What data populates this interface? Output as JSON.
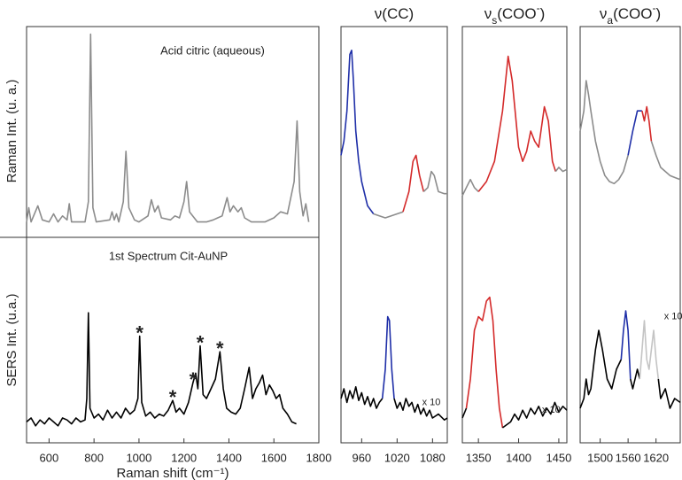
{
  "chart_data": [
    {
      "type": "line",
      "xlim": [
        500,
        1800
      ],
      "xticks": [
        600,
        800,
        1000,
        1200,
        1400,
        1600,
        1800
      ],
      "xlabel": "Raman shift (cm⁻¹)",
      "panels": [
        {
          "title": "Acid citric (aqueous)",
          "ylabel": "Raman Int. (u. a.)",
          "ylim": [
            0,
            1
          ],
          "series": [
            {
              "color": "#8c8c8c",
              "x": [
                500,
                510,
                520,
                550,
                570,
                600,
                620,
                640,
                660,
                680,
                690,
                700,
                760,
                775,
                785,
                795,
                810,
                870,
                880,
                890,
                900,
                910,
                930,
                942,
                955,
                980,
                1000,
                1040,
                1055,
                1070,
                1085,
                1100,
                1140,
                1160,
                1180,
                1200,
                1212,
                1225,
                1260,
                1300,
                1330,
                1350,
                1370,
                1392,
                1405,
                1420,
                1440,
                1455,
                1470,
                1500,
                1560,
                1600,
                1630,
                1660,
                1690,
                1703,
                1715,
                1730,
                1742,
                1755
              ],
              "values": [
                0.05,
                0.12,
                0.05,
                0.13,
                0.06,
                0.05,
                0.09,
                0.05,
                0.08,
                0.06,
                0.14,
                0.05,
                0.05,
                0.15,
                0.98,
                0.12,
                0.05,
                0.06,
                0.1,
                0.06,
                0.09,
                0.05,
                0.15,
                0.4,
                0.12,
                0.06,
                0.05,
                0.08,
                0.16,
                0.1,
                0.13,
                0.07,
                0.06,
                0.08,
                0.07,
                0.15,
                0.25,
                0.1,
                0.05,
                0.05,
                0.06,
                0.07,
                0.08,
                0.17,
                0.1,
                0.13,
                0.1,
                0.12,
                0.07,
                0.05,
                0.05,
                0.07,
                0.1,
                0.09,
                0.25,
                0.55,
                0.2,
                0.08,
                0.14,
                0.05
              ]
            }
          ]
        },
        {
          "title": "1st Spectrum Cit-AuNP",
          "ylabel": "SERS Int. (u.a.)",
          "ylim": [
            0,
            1
          ],
          "annotations": [
            {
              "text": "*",
              "x": 1003
            },
            {
              "text": "*",
              "x": 1150
            },
            {
              "text": "*",
              "x": 1240
            },
            {
              "text": "*",
              "x": 1272
            },
            {
              "text": "*",
              "x": 1360
            }
          ],
          "series": [
            {
              "color": "#000000",
              "x": [
                500,
                520,
                540,
                560,
                580,
                600,
                620,
                640,
                660,
                680,
                700,
                720,
                740,
                760,
                768,
                775,
                782,
                800,
                820,
                840,
                860,
                880,
                900,
                920,
                940,
                960,
                980,
                995,
                1003,
                1012,
                1030,
                1050,
                1070,
                1090,
                1110,
                1130,
                1150,
                1165,
                1180,
                1200,
                1220,
                1240,
                1252,
                1262,
                1272,
                1285,
                1300,
                1320,
                1340,
                1360,
                1375,
                1390,
                1410,
                1430,
                1450,
                1470,
                1490,
                1505,
                1520,
                1535,
                1550,
                1565,
                1580,
                1595,
                1610,
                1625,
                1640,
                1660,
                1680,
                1700
              ],
              "values": [
                0.08,
                0.1,
                0.06,
                0.09,
                0.07,
                0.1,
                0.08,
                0.06,
                0.1,
                0.09,
                0.07,
                0.1,
                0.08,
                0.09,
                0.2,
                0.64,
                0.15,
                0.1,
                0.12,
                0.09,
                0.14,
                0.1,
                0.13,
                0.1,
                0.15,
                0.12,
                0.14,
                0.2,
                0.52,
                0.18,
                0.11,
                0.13,
                0.1,
                0.12,
                0.11,
                0.14,
                0.19,
                0.13,
                0.15,
                0.12,
                0.18,
                0.28,
                0.33,
                0.25,
                0.47,
                0.22,
                0.2,
                0.25,
                0.3,
                0.44,
                0.25,
                0.15,
                0.13,
                0.12,
                0.15,
                0.25,
                0.36,
                0.2,
                0.25,
                0.28,
                0.32,
                0.22,
                0.27,
                0.24,
                0.2,
                0.22,
                0.15,
                0.12,
                0.08,
                0.07
              ]
            }
          ]
        }
      ]
    },
    {
      "type": "line",
      "title": {
        "symbol": "ν",
        "rest": "(CC)"
      },
      "xlim": [
        925,
        1105
      ],
      "xticks": [
        960,
        1020,
        1080
      ],
      "panels": [
        {
          "ylim": [
            0,
            1
          ],
          "series": [
            {
              "color": "#1f2fa8",
              "x": [
                925,
                930,
                935,
                940,
                943,
                946,
                950,
                955,
                960,
                970,
                980
              ],
              "values": [
                0.38,
                0.45,
                0.6,
                0.88,
                0.9,
                0.75,
                0.5,
                0.35,
                0.25,
                0.13,
                0.09
              ]
            },
            {
              "color": "#8c8c8c",
              "x": [
                980,
                990,
                1000,
                1010,
                1020,
                1030
              ],
              "values": [
                0.09,
                0.08,
                0.07,
                0.08,
                0.09,
                0.1
              ]
            },
            {
              "color": "#d42a2a",
              "x": [
                1030,
                1040,
                1047,
                1052,
                1058,
                1065
              ],
              "values": [
                0.1,
                0.2,
                0.35,
                0.38,
                0.28,
                0.2
              ]
            },
            {
              "color": "#8c8c8c",
              "x": [
                1065,
                1072,
                1078,
                1083,
                1090,
                1100,
                1105
              ],
              "values": [
                0.2,
                0.22,
                0.3,
                0.28,
                0.2,
                0.19,
                0.19
              ]
            }
          ]
        },
        {
          "ylim": [
            0,
            1
          ],
          "note": "x 10",
          "series": [
            {
              "color": "#000000",
              "x": [
                925,
                930,
                935,
                940,
                945,
                950,
                955,
                960,
                965,
                970,
                975,
                980,
                985,
                990,
                995
              ],
              "values": [
                0.2,
                0.25,
                0.18,
                0.24,
                0.2,
                0.26,
                0.19,
                0.23,
                0.17,
                0.21,
                0.16,
                0.2,
                0.15,
                0.18,
                0.2
              ]
            },
            {
              "color": "#1f2fa8",
              "x": [
                995,
                1000,
                1004,
                1007,
                1011,
                1015
              ],
              "values": [
                0.2,
                0.35,
                0.62,
                0.6,
                0.35,
                0.2
              ]
            },
            {
              "color": "#000000",
              "x": [
                1015,
                1020,
                1025,
                1030,
                1035,
                1040,
                1045,
                1050,
                1055,
                1060,
                1065,
                1070,
                1075,
                1080,
                1090,
                1100,
                1105
              ],
              "values": [
                0.2,
                0.15,
                0.18,
                0.14,
                0.2,
                0.16,
                0.18,
                0.13,
                0.17,
                0.12,
                0.15,
                0.11,
                0.14,
                0.1,
                0.12,
                0.09,
                0.1
              ]
            }
          ]
        }
      ]
    },
    {
      "type": "line",
      "title": {
        "symbol": "ν",
        "sub": "s",
        "rest": "(COO",
        "sup": "-",
        "close": ")"
      },
      "xlim": [
        1330,
        1460
      ],
      "xticks": [
        1350,
        1400,
        1450
      ],
      "panels": [
        {
          "ylim": [
            0,
            1
          ],
          "series": [
            {
              "color": "#8c8c8c",
              "x": [
                1330,
                1335,
                1340,
                1345,
                1350
              ],
              "values": [
                0.18,
                0.22,
                0.26,
                0.22,
                0.2
              ]
            },
            {
              "color": "#d42a2a",
              "x": [
                1350,
                1360,
                1370,
                1380,
                1387,
                1392,
                1400,
                1405,
                1410,
                1415,
                1420,
                1425,
                1432,
                1437,
                1442,
                1446
              ],
              "values": [
                0.2,
                0.25,
                0.35,
                0.6,
                0.87,
                0.75,
                0.42,
                0.35,
                0.4,
                0.5,
                0.45,
                0.42,
                0.62,
                0.55,
                0.35,
                0.3
              ]
            },
            {
              "color": "#8c8c8c",
              "x": [
                1446,
                1450,
                1455,
                1460
              ],
              "values": [
                0.3,
                0.32,
                0.3,
                0.31
              ]
            }
          ]
        },
        {
          "ylim": [
            0,
            1
          ],
          "note": "x 10",
          "series": [
            {
              "color": "#000000",
              "x": [
                1330,
                1335
              ],
              "values": [
                0.1,
                0.15
              ]
            },
            {
              "color": "#d42a2a",
              "x": [
                1335,
                1340,
                1345,
                1350,
                1355,
                1360,
                1364,
                1368,
                1372,
                1376,
                1380
              ],
              "values": [
                0.15,
                0.3,
                0.55,
                0.62,
                0.6,
                0.7,
                0.72,
                0.6,
                0.35,
                0.15,
                0.05
              ]
            },
            {
              "color": "#000000",
              "x": [
                1380,
                1390,
                1395,
                1400,
                1405,
                1410,
                1415,
                1420,
                1425,
                1430,
                1435,
                1440,
                1445,
                1450,
                1455,
                1460
              ],
              "values": [
                0.05,
                0.08,
                0.12,
                0.09,
                0.14,
                0.1,
                0.15,
                0.12,
                0.16,
                0.11,
                0.15,
                0.12,
                0.18,
                0.13,
                0.16,
                0.14
              ]
            }
          ]
        }
      ]
    },
    {
      "type": "line",
      "title": {
        "symbol": "ν",
        "sub": "a",
        "rest": "(COO",
        "sup": "-",
        "close": ")"
      },
      "xlim": [
        1457,
        1672
      ],
      "xticks": [
        1500,
        1560,
        1620
      ],
      "panels": [
        {
          "ylim": [
            0,
            1
          ],
          "series": [
            {
              "color": "#8c8c8c",
              "x": [
                1457,
                1465,
                1470,
                1475,
                1480,
                1490,
                1500,
                1510,
                1520,
                1530,
                1540,
                1550,
                1560
              ],
              "values": [
                0.5,
                0.6,
                0.75,
                0.68,
                0.6,
                0.45,
                0.35,
                0.28,
                0.25,
                0.24,
                0.26,
                0.3,
                0.38
              ]
            },
            {
              "color": "#1f2fa8",
              "x": [
                1560,
                1570,
                1580,
                1590
              ],
              "values": [
                0.38,
                0.5,
                0.6,
                0.6
              ]
            },
            {
              "color": "#d42a2a",
              "x": [
                1590,
                1595,
                1600,
                1605,
                1610
              ],
              "values": [
                0.6,
                0.55,
                0.62,
                0.55,
                0.45
              ]
            },
            {
              "color": "#8c8c8c",
              "x": [
                1610,
                1620,
                1630,
                1640,
                1650,
                1660,
                1672
              ],
              "values": [
                0.45,
                0.38,
                0.32,
                0.3,
                0.28,
                0.27,
                0.26
              ]
            }
          ]
        },
        {
          "ylim": [
            0,
            1
          ],
          "note": "x 10",
          "series": [
            {
              "color": "#000000",
              "x": [
                1457,
                1465,
                1470,
                1475,
                1480,
                1490,
                1497,
                1505,
                1515,
                1525,
                1535,
                1545
              ],
              "values": [
                0.15,
                0.2,
                0.3,
                0.22,
                0.25,
                0.45,
                0.55,
                0.45,
                0.3,
                0.25,
                0.35,
                0.4
              ]
            },
            {
              "color": "#1f2fa8",
              "x": [
                1545,
                1550,
                1555,
                1560,
                1565
              ],
              "values": [
                0.4,
                0.55,
                0.65,
                0.55,
                0.3
              ]
            },
            {
              "color": "#000000",
              "x": [
                1565,
                1570,
                1575,
                1580,
                1585
              ],
              "values": [
                0.3,
                0.25,
                0.3,
                0.35,
                0.3
              ]
            },
            {
              "color": "#c4c4c4",
              "x": [
                1585,
                1590,
                1595,
                1600,
                1605,
                1610,
                1615,
                1620,
                1625
              ],
              "values": [
                0.3,
                0.45,
                0.6,
                0.4,
                0.35,
                0.45,
                0.55,
                0.4,
                0.3
              ]
            },
            {
              "color": "#000000",
              "x": [
                1625,
                1630,
                1640,
                1650,
                1660,
                1672
              ],
              "values": [
                0.3,
                0.2,
                0.25,
                0.15,
                0.2,
                0.18
              ]
            }
          ]
        }
      ]
    }
  ]
}
